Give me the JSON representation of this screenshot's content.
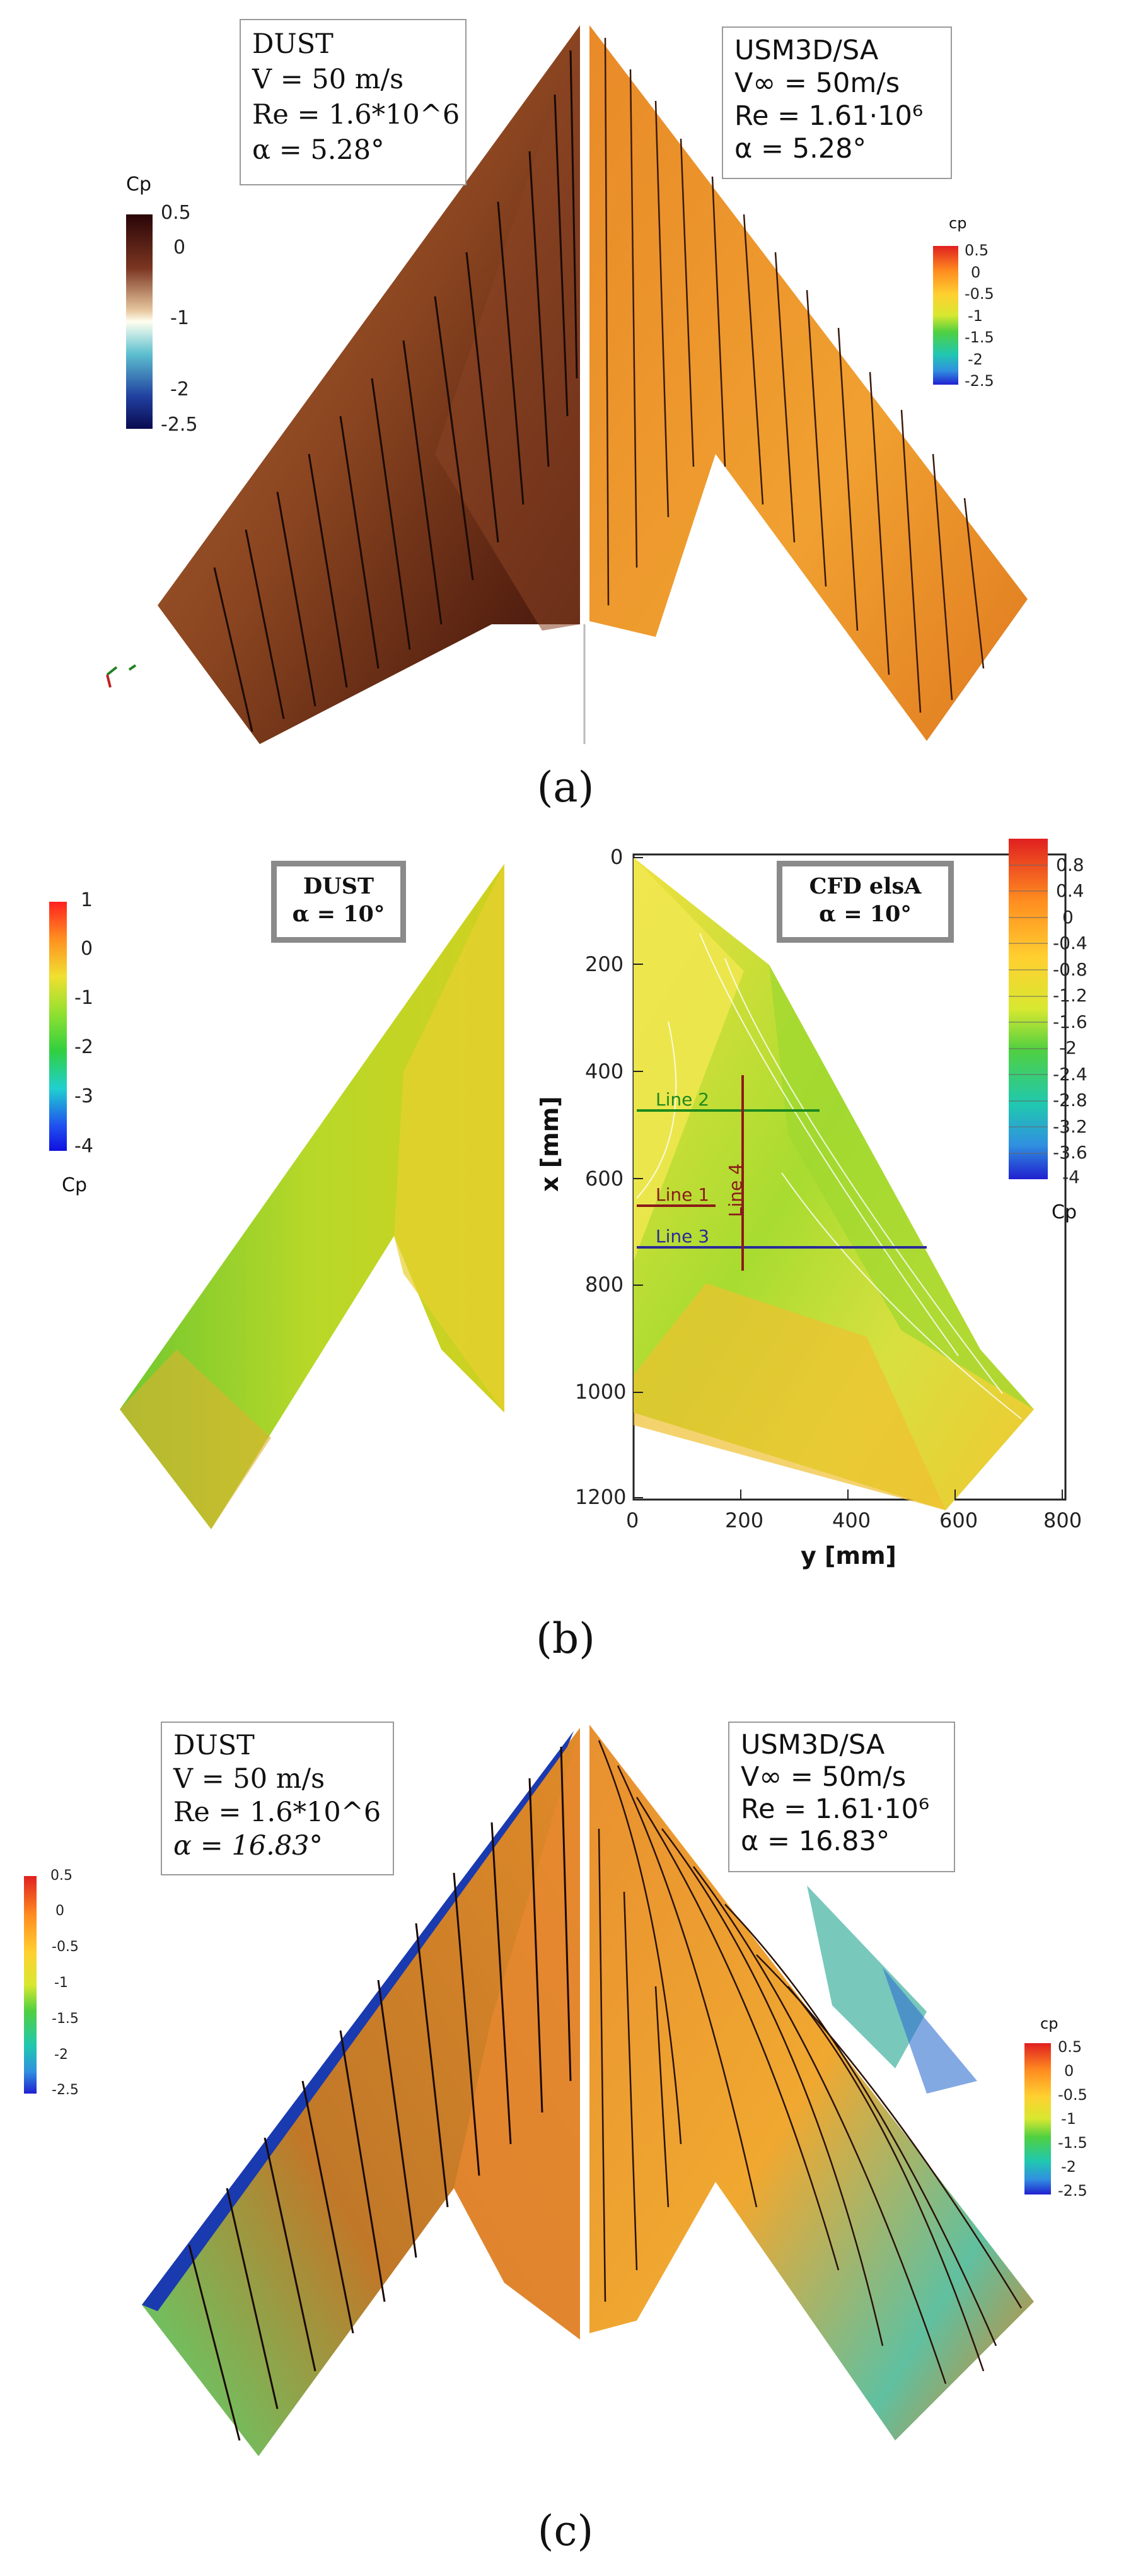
{
  "panel_a": {
    "caption": "(a)",
    "left_box": {
      "line1": "DUST",
      "line2": "V = 50 m/s",
      "line3": "Re = 1.6*10^6",
      "line4": "α = 5.28°"
    },
    "right_box": {
      "line1": "USM3D/SA",
      "line2": "V∞ = 50m/s",
      "line3": "Re = 1.61·10⁶",
      "line4": "α = 5.28°"
    },
    "legend_left": {
      "title": "Cp",
      "ticks": [
        "0.5",
        "0",
        "-1",
        "-2",
        "-2.5"
      ]
    },
    "legend_right": {
      "title": "cp",
      "ticks": [
        "0.5",
        "0",
        "-0.5",
        "-1",
        "-1.5",
        "-2",
        "-2.5"
      ]
    }
  },
  "panel_b": {
    "caption": "(b)",
    "left_box": {
      "line1": "DUST",
      "line2": "α = 10°"
    },
    "right_box": {
      "line1": "CFD elsA",
      "line2": "α = 10°"
    },
    "legend_left": {
      "title": "Cp",
      "ticks": [
        "1",
        "0",
        "-1",
        "-2",
        "-3",
        "-4"
      ]
    },
    "legend_right": {
      "title": "Cp",
      "ticks": [
        "0.8",
        "0.4",
        "0",
        "-0.4",
        "-0.8",
        "-1.2",
        "-1.6",
        "-2",
        "-2.4",
        "-2.8",
        "-3.2",
        "-3.6",
        "-4"
      ]
    },
    "axes": {
      "xlabel": "x [mm]",
      "ylabel": "y [mm]",
      "x_ticks": [
        "0",
        "200",
        "400",
        "600",
        "800",
        "1000",
        "1200"
      ],
      "y_ticks": [
        "0",
        "200",
        "400",
        "600",
        "800"
      ]
    },
    "lines": {
      "line1": "Line 1",
      "line2": "Line 2",
      "line3": "Line 3",
      "line4": "Line 4"
    },
    "colors": {
      "line1": "#8b1a1a",
      "line2": "#1e8a1e",
      "line3": "#2a2a9a",
      "line4": "#8b1a1a"
    }
  },
  "panel_c": {
    "caption": "(c)",
    "left_box": {
      "line1": "DUST",
      "line2": "V = 50 m/s",
      "line3": "Re = 1.6*10^6",
      "line4": "α = 16.83°"
    },
    "right_box": {
      "line1": "USM3D/SA",
      "line2": "V∞ = 50m/s",
      "line3": "Re = 1.61·10⁶",
      "line4": "α = 16.83°"
    },
    "legend_left": {
      "ticks": [
        "0.5",
        "0",
        "-0.5",
        "-1",
        "-1.5",
        "-2",
        "-2.5"
      ]
    },
    "legend_right": {
      "title": "cp",
      "ticks": [
        "0.5",
        "0",
        "-0.5",
        "-1",
        "-1.5",
        "-2",
        "-2.5"
      ]
    }
  }
}
